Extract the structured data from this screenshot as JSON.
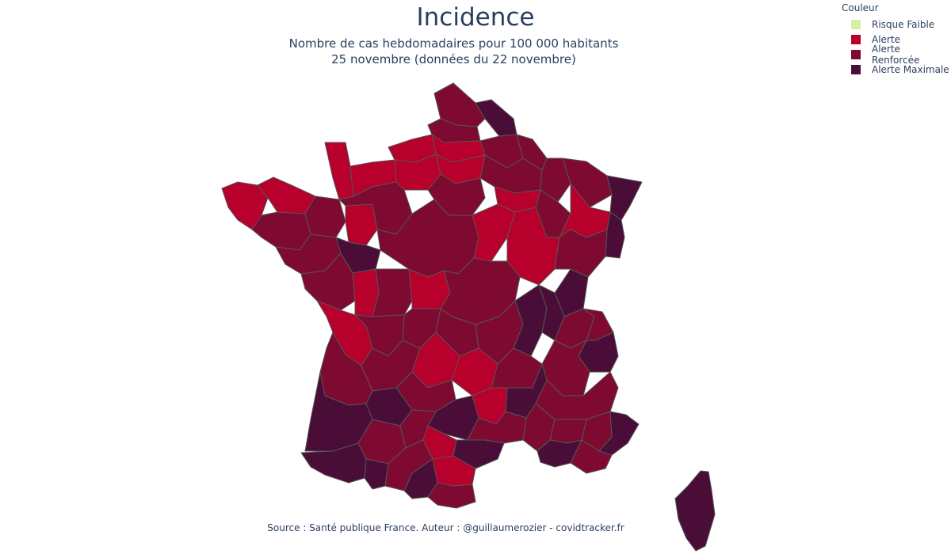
{
  "header": {
    "title": "Incidence",
    "subtitle_line1": "Nombre de cas hebdomadaires pour 100 000 habitants",
    "subtitle_line2": "25 novembre (données du 22 novembre)"
  },
  "legend": {
    "title": "Couleur",
    "items": [
      {
        "label": "Risque Faible",
        "color": "#d4f0a0"
      },
      {
        "label": "Alerte",
        "color": "#b7002b"
      },
      {
        "label": "Alerte Renforcée",
        "color": "#7e0a32"
      },
      {
        "label": "Alerte Maximale",
        "color": "#4a0d38"
      }
    ]
  },
  "footer": {
    "source": "Source : Santé publique France. Auteur : @guillaumerozier - covidtracker.fr"
  },
  "map": {
    "regions": [
      {
        "id": "nord",
        "level": "Alerte Renforcée"
      },
      {
        "id": "nord-est-frontiere",
        "level": "Alerte Maximale"
      },
      {
        "id": "pas-de-calais",
        "level": "Alerte Renforcée"
      },
      {
        "id": "somme",
        "level": "Alerte"
      },
      {
        "id": "seine-maritime",
        "level": "Alerte"
      },
      {
        "id": "oise",
        "level": "Alerte"
      },
      {
        "id": "aisne",
        "level": "Alerte Renforcée"
      },
      {
        "id": "ardennes",
        "level": "Alerte Renforcée"
      },
      {
        "id": "manche",
        "level": "Alerte"
      },
      {
        "id": "calvados",
        "level": "Alerte"
      },
      {
        "id": "eure",
        "level": "Alerte"
      },
      {
        "id": "ile-de-france",
        "level": "Alerte Renforcée"
      },
      {
        "id": "marne",
        "level": "Alerte Renforcée"
      },
      {
        "id": "meuse",
        "level": "Alerte Renforcée"
      },
      {
        "id": "moselle",
        "level": "Alerte Renforcée"
      },
      {
        "id": "bas-rhin",
        "level": "Alerte Maximale"
      },
      {
        "id": "haut-rhin",
        "level": "Alerte Maximale"
      },
      {
        "id": "finistere",
        "level": "Alerte"
      },
      {
        "id": "cotes-darmor",
        "level": "Alerte"
      },
      {
        "id": "morbihan",
        "level": "Alerte Renforcée"
      },
      {
        "id": "ille-et-vilaine",
        "level": "Alerte Renforcée"
      },
      {
        "id": "mayenne",
        "level": "Alerte"
      },
      {
        "id": "sarthe",
        "level": "Alerte Renforcée"
      },
      {
        "id": "loire-atlantique",
        "level": "Alerte Renforcée"
      },
      {
        "id": "maine-et-loire",
        "level": "Alerte Maximale"
      },
      {
        "id": "aube",
        "level": "Alerte"
      },
      {
        "id": "haute-marne",
        "level": "Alerte Renforcée"
      },
      {
        "id": "vosges",
        "level": "Alerte"
      },
      {
        "id": "yonne",
        "level": "Alerte"
      },
      {
        "id": "cote-dor",
        "level": "Alerte"
      },
      {
        "id": "haute-saone",
        "level": "Alerte Renforcée"
      },
      {
        "id": "doubs",
        "level": "Alerte Maximale"
      },
      {
        "id": "centre",
        "level": "Alerte Renforcée"
      },
      {
        "id": "vendee",
        "level": "Alerte Renforcée"
      },
      {
        "id": "deux-sevres",
        "level": "Alerte"
      },
      {
        "id": "vienne",
        "level": "Alerte Renforcée"
      },
      {
        "id": "indre",
        "level": "Alerte"
      },
      {
        "id": "cher-allier",
        "level": "Alerte Renforcée"
      },
      {
        "id": "charente-maritime",
        "level": "Alerte"
      },
      {
        "id": "charente",
        "level": "Alerte Renforcée"
      },
      {
        "id": "haute-vienne",
        "level": "Alerte Renforcée"
      },
      {
        "id": "creuse",
        "level": "Alerte Renforcée"
      },
      {
        "id": "puy-de-dome",
        "level": "Alerte Renforcée"
      },
      {
        "id": "loire",
        "level": "Alerte Maximale"
      },
      {
        "id": "rhone",
        "level": "Alerte Maximale"
      },
      {
        "id": "ain",
        "level": "Alerte Renforcée"
      },
      {
        "id": "haute-savoie",
        "level": "Alerte Renforcée"
      },
      {
        "id": "savoie",
        "level": "Alerte Maximale"
      },
      {
        "id": "isere",
        "level": "Alerte Renforcée"
      },
      {
        "id": "dordogne",
        "level": "Alerte Renforcée"
      },
      {
        "id": "correze",
        "level": "Alerte"
      },
      {
        "id": "cantal",
        "level": "Alerte"
      },
      {
        "id": "haute-loire",
        "level": "Alerte Renforcée"
      },
      {
        "id": "ardeche",
        "level": "Alerte"
      },
      {
        "id": "drome",
        "level": "Alerte Maximale"
      },
      {
        "id": "hautes-alpes",
        "level": "Alerte Renforcée"
      },
      {
        "id": "gironde",
        "level": "Alerte Renforcée"
      },
      {
        "id": "lot",
        "level": "Alerte Renforcée"
      },
      {
        "id": "lot-et-garonne",
        "level": "Alerte Maximale"
      },
      {
        "id": "aveyron",
        "level": "Alerte Maximale"
      },
      {
        "id": "lozere",
        "level": "Alerte Renforcée"
      },
      {
        "id": "gard",
        "level": "Alerte Renforcée"
      },
      {
        "id": "vaucluse",
        "level": "Alerte Renforcée"
      },
      {
        "id": "alpes-hte-provence",
        "level": "Alerte Renforcée"
      },
      {
        "id": "alpes-maritimes",
        "level": "Alerte Maximale"
      },
      {
        "id": "landes",
        "level": "Alerte Maximale"
      },
      {
        "id": "gers",
        "level": "Alerte Renforcée"
      },
      {
        "id": "tarn-et-garonne",
        "level": "Alerte Renforcée"
      },
      {
        "id": "tarn",
        "level": "Alerte"
      },
      {
        "id": "herault",
        "level": "Alerte Maximale"
      },
      {
        "id": "bouches-du-rhone",
        "level": "Alerte Maximale"
      },
      {
        "id": "var",
        "level": "Alerte Renforcée"
      },
      {
        "id": "pyrenees-atlantiques",
        "level": "Alerte Maximale"
      },
      {
        "id": "hautes-pyrenees",
        "level": "Alerte Maximale"
      },
      {
        "id": "haute-garonne",
        "level": "Alerte Renforcée"
      },
      {
        "id": "ariege",
        "level": "Alerte Maximale"
      },
      {
        "id": "aude",
        "level": "Alerte"
      },
      {
        "id": "pyrenees-orientales",
        "level": "Alerte Renforcée"
      },
      {
        "id": "corse",
        "level": "Alerte Maximale"
      }
    ]
  }
}
